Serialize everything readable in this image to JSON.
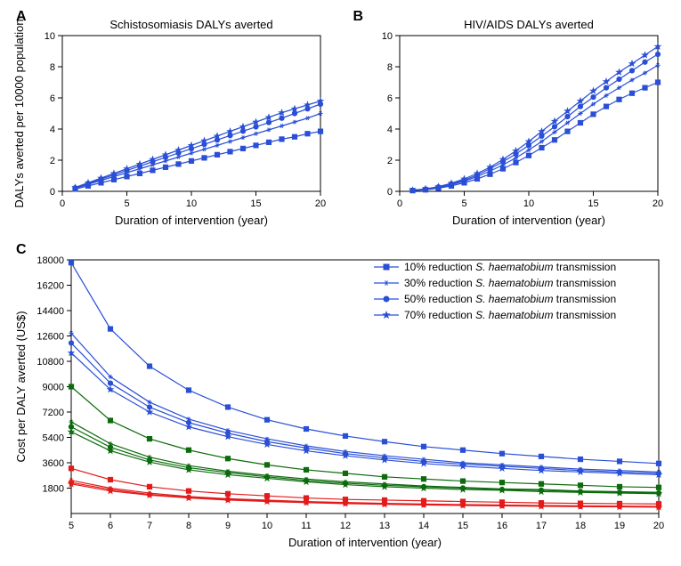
{
  "colors": {
    "blue": "#2a4fd6",
    "green": "#0c6b0c",
    "red": "#e31b1b",
    "axis": "#000000",
    "background": "#ffffff"
  },
  "fontsize": {
    "tick": 11,
    "label": 13,
    "panel_label": 16,
    "title": 13,
    "legend": 12
  },
  "legend": {
    "items": [
      {
        "marker": "square",
        "label_prefix": "10% reduction ",
        "label_em": "S. haematobium",
        "label_suffix": " transmission"
      },
      {
        "marker": "asterisk",
        "label_prefix": "30% reduction ",
        "label_em": "S. haematobium",
        "label_suffix": " transmission"
      },
      {
        "marker": "circle",
        "label_prefix": "50% reduction ",
        "label_em": "S. haematobium",
        "label_suffix": " transmission"
      },
      {
        "marker": "star",
        "label_prefix": "70% reduction ",
        "label_em": "S. haematobium",
        "label_suffix": " transmission"
      }
    ]
  },
  "panelA": {
    "label": "A",
    "title": "Schistosomiasis DALYs averted",
    "xlabel": "Duration of intervention (year)",
    "ylabel": "DALYs averted per 10000 population",
    "xlim": [
      0,
      20
    ],
    "xtick_step": 5,
    "ylim": [
      0,
      10
    ],
    "ytick_step": 2,
    "x": [
      1,
      2,
      3,
      4,
      5,
      6,
      7,
      8,
      9,
      10,
      11,
      12,
      13,
      14,
      15,
      16,
      17,
      18,
      19,
      20
    ],
    "series": [
      {
        "marker": "square",
        "color": "#2a4fd6",
        "y": [
          0.15,
          0.35,
          0.55,
          0.75,
          0.95,
          1.15,
          1.35,
          1.55,
          1.75,
          1.95,
          2.15,
          2.35,
          2.55,
          2.75,
          2.95,
          3.15,
          3.35,
          3.5,
          3.7,
          3.85
        ]
      },
      {
        "marker": "asterisk",
        "color": "#2a4fd6",
        "y": [
          0.2,
          0.45,
          0.7,
          0.95,
          1.2,
          1.45,
          1.7,
          1.95,
          2.2,
          2.45,
          2.7,
          2.95,
          3.2,
          3.45,
          3.7,
          3.95,
          4.2,
          4.45,
          4.7,
          5.0
        ]
      },
      {
        "marker": "circle",
        "color": "#2a4fd6",
        "y": [
          0.22,
          0.5,
          0.78,
          1.06,
          1.34,
          1.62,
          1.9,
          2.18,
          2.46,
          2.74,
          3.02,
          3.3,
          3.58,
          3.86,
          4.14,
          4.42,
          4.7,
          5.0,
          5.3,
          5.6
        ]
      },
      {
        "marker": "star",
        "color": "#2a4fd6",
        "y": [
          0.25,
          0.55,
          0.85,
          1.15,
          1.45,
          1.75,
          2.05,
          2.35,
          2.65,
          2.95,
          3.25,
          3.55,
          3.85,
          4.15,
          4.45,
          4.75,
          5.05,
          5.3,
          5.55,
          5.8
        ]
      }
    ]
  },
  "panelB": {
    "label": "B",
    "title": "HIV/AIDS DALYs averted",
    "xlabel": "Duration of intervention (year)",
    "ylabel": "",
    "xlim": [
      0,
      20
    ],
    "xtick_step": 5,
    "ylim": [
      0,
      10
    ],
    "ytick_step": 2,
    "x": [
      1,
      2,
      3,
      4,
      5,
      6,
      7,
      8,
      9,
      10,
      11,
      12,
      13,
      14,
      15,
      16,
      17,
      18,
      19,
      20
    ],
    "series": [
      {
        "marker": "square",
        "color": "#2a4fd6",
        "y": [
          0.05,
          0.1,
          0.2,
          0.35,
          0.55,
          0.8,
          1.1,
          1.45,
          1.85,
          2.3,
          2.8,
          3.3,
          3.85,
          4.4,
          4.95,
          5.45,
          5.9,
          6.3,
          6.65,
          7.0
        ]
      },
      {
        "marker": "asterisk",
        "color": "#2a4fd6",
        "y": [
          0.05,
          0.12,
          0.25,
          0.42,
          0.65,
          0.95,
          1.3,
          1.7,
          2.15,
          2.65,
          3.2,
          3.8,
          4.4,
          5.0,
          5.6,
          6.15,
          6.65,
          7.15,
          7.6,
          8.1
        ]
      },
      {
        "marker": "circle",
        "color": "#2a4fd6",
        "y": [
          0.06,
          0.14,
          0.28,
          0.48,
          0.72,
          1.05,
          1.45,
          1.9,
          2.4,
          2.95,
          3.55,
          4.15,
          4.8,
          5.45,
          6.05,
          6.65,
          7.2,
          7.75,
          8.3,
          8.8
        ]
      },
      {
        "marker": "star",
        "color": "#2a4fd6",
        "y": [
          0.07,
          0.16,
          0.3,
          0.52,
          0.8,
          1.15,
          1.55,
          2.05,
          2.6,
          3.2,
          3.85,
          4.5,
          5.15,
          5.8,
          6.45,
          7.05,
          7.65,
          8.2,
          8.75,
          9.3
        ]
      }
    ]
  },
  "panelC": {
    "label": "C",
    "xlabel": "Duration of intervention (year)",
    "ylabel": "Cost per DALY averted (US$)",
    "xlim": [
      5,
      20
    ],
    "xtick_step": 1,
    "yticks": [
      1800,
      3600,
      5400,
      7200,
      9000,
      10800,
      12600,
      14400,
      16200,
      18000
    ],
    "x": [
      5,
      6,
      7,
      8,
      9,
      10,
      11,
      12,
      13,
      14,
      15,
      16,
      17,
      18,
      19,
      20
    ],
    "series": [
      {
        "marker": "square",
        "color": "#2a4fd6",
        "y": [
          17800,
          13100,
          10450,
          8750,
          7550,
          6650,
          6000,
          5500,
          5100,
          4750,
          4500,
          4250,
          4050,
          3850,
          3700,
          3550
        ]
      },
      {
        "marker": "asterisk",
        "color": "#2a4fd6",
        "y": [
          12800,
          9700,
          7900,
          6700,
          5900,
          5300,
          4800,
          4400,
          4100,
          3850,
          3600,
          3450,
          3300,
          3150,
          3050,
          2950
        ]
      },
      {
        "marker": "circle",
        "color": "#2a4fd6",
        "y": [
          12100,
          9250,
          7550,
          6450,
          5700,
          5100,
          4650,
          4250,
          3950,
          3700,
          3500,
          3350,
          3200,
          3050,
          2950,
          2850
        ]
      },
      {
        "marker": "star",
        "color": "#2a4fd6",
        "y": [
          11400,
          8800,
          7200,
          6150,
          5450,
          4900,
          4450,
          4100,
          3800,
          3550,
          3350,
          3200,
          3050,
          2950,
          2850,
          2750
        ]
      },
      {
        "marker": "square",
        "color": "#0c6b0c",
        "y": [
          9000,
          6600,
          5300,
          4500,
          3900,
          3450,
          3100,
          2850,
          2600,
          2450,
          2300,
          2200,
          2100,
          2000,
          1900,
          1850
        ]
      },
      {
        "marker": "asterisk",
        "color": "#0c6b0c",
        "y": [
          6500,
          4950,
          4000,
          3400,
          3000,
          2700,
          2450,
          2250,
          2100,
          1950,
          1850,
          1750,
          1700,
          1600,
          1550,
          1500
        ]
      },
      {
        "marker": "circle",
        "color": "#0c6b0c",
        "y": [
          6150,
          4700,
          3800,
          3250,
          2900,
          2600,
          2350,
          2150,
          2000,
          1900,
          1800,
          1700,
          1650,
          1550,
          1500,
          1450
        ]
      },
      {
        "marker": "star",
        "color": "#0c6b0c",
        "y": [
          5800,
          4450,
          3650,
          3100,
          2750,
          2500,
          2250,
          2050,
          1900,
          1800,
          1700,
          1650,
          1550,
          1500,
          1450,
          1400
        ]
      },
      {
        "marker": "square",
        "color": "#e31b1b",
        "y": [
          3200,
          2400,
          1900,
          1600,
          1400,
          1250,
          1100,
          1000,
          950,
          900,
          850,
          800,
          750,
          720,
          700,
          680
        ]
      },
      {
        "marker": "asterisk",
        "color": "#e31b1b",
        "y": [
          2350,
          1800,
          1450,
          1200,
          1050,
          950,
          850,
          780,
          720,
          670,
          630,
          600,
          570,
          540,
          520,
          500
        ]
      },
      {
        "marker": "circle",
        "color": "#e31b1b",
        "y": [
          2200,
          1700,
          1350,
          1150,
          1000,
          900,
          800,
          730,
          680,
          630,
          600,
          560,
          540,
          510,
          490,
          470
        ]
      },
      {
        "marker": "star",
        "color": "#e31b1b",
        "y": [
          2100,
          1600,
          1300,
          1100,
          950,
          850,
          770,
          700,
          650,
          610,
          570,
          540,
          510,
          490,
          470,
          450
        ]
      }
    ]
  }
}
